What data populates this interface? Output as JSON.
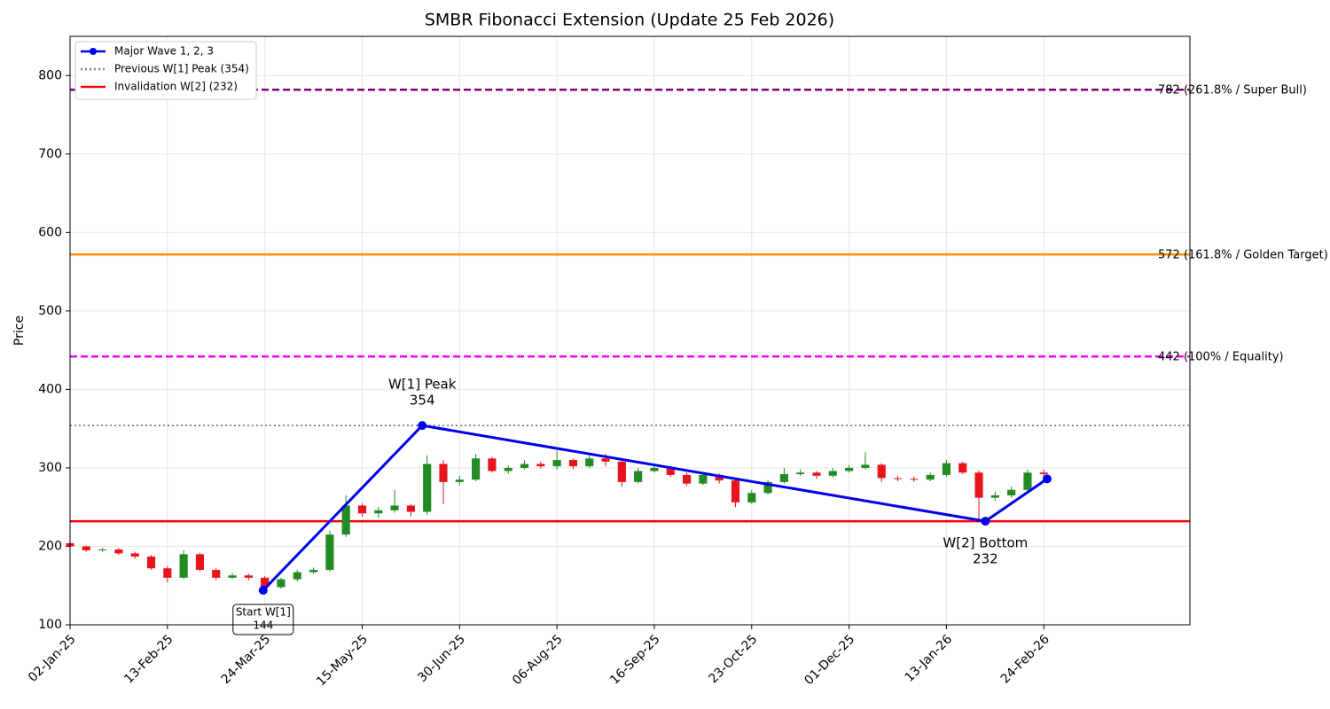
{
  "chart_data": {
    "type": "candlestick",
    "title": "SMBR Fibonacci Extension (Update 25 Feb 2026)",
    "y_label": "Price",
    "categories": [
      "02-Jan-25",
      null,
      null,
      null,
      null,
      null,
      "13-Feb-25",
      null,
      null,
      null,
      null,
      null,
      "24-Mar-25",
      null,
      null,
      null,
      null,
      null,
      "15-May-25",
      null,
      null,
      null,
      null,
      null,
      "30-Jun-25",
      null,
      null,
      null,
      null,
      null,
      "06-Aug-25",
      null,
      null,
      null,
      null,
      null,
      "16-Sep-25",
      null,
      null,
      null,
      null,
      null,
      "23-Oct-25",
      null,
      null,
      null,
      null,
      null,
      "01-Dec-25",
      null,
      null,
      null,
      null,
      null,
      "13-Jan-26",
      null,
      null,
      null,
      null,
      null,
      "24-Feb-26"
    ],
    "open": [
      204,
      200,
      195,
      196,
      191,
      187,
      172,
      160,
      190,
      170,
      160,
      163,
      160,
      148,
      158,
      167,
      170,
      215,
      252,
      242,
      246,
      252,
      244,
      305,
      282,
      285,
      312,
      296,
      300,
      305,
      302,
      310,
      302,
      312,
      308,
      282,
      296,
      300,
      291,
      280,
      291,
      284,
      256,
      268,
      282,
      292,
      294,
      290,
      296,
      300,
      304,
      287,
      286,
      285,
      291,
      306,
      294,
      262,
      265,
      272,
      294
    ],
    "high": [
      205,
      201,
      198,
      198,
      193,
      189,
      175,
      195,
      192,
      172,
      166,
      165,
      162,
      160,
      170,
      173,
      220,
      265,
      255,
      250,
      272,
      254,
      316,
      310,
      290,
      318,
      314,
      303,
      310,
      308,
      322,
      312,
      316,
      318,
      310,
      300,
      304,
      302,
      294,
      294,
      293,
      286,
      272,
      285,
      300,
      298,
      296,
      300,
      304,
      320,
      306,
      290,
      289,
      294,
      310,
      308,
      297,
      270,
      276,
      298,
      298
    ],
    "low": [
      198,
      193,
      193,
      189,
      184,
      170,
      154,
      158,
      168,
      157,
      158,
      157,
      144,
      146,
      155,
      165,
      168,
      212,
      238,
      236,
      243,
      238,
      240,
      254,
      278,
      283,
      294,
      292,
      298,
      299,
      298,
      298,
      300,
      302,
      276,
      280,
      294,
      288,
      277,
      278,
      280,
      250,
      254,
      266,
      280,
      290,
      286,
      288,
      294,
      298,
      282,
      283,
      282,
      283,
      289,
      292,
      232,
      258,
      262,
      270,
      286
    ],
    "close": [
      200,
      195,
      196,
      191,
      187,
      172,
      160,
      190,
      170,
      160,
      163,
      160,
      148,
      158,
      167,
      170,
      215,
      252,
      242,
      246,
      252,
      244,
      305,
      282,
      285,
      312,
      296,
      300,
      305,
      302,
      310,
      302,
      312,
      308,
      282,
      296,
      300,
      291,
      280,
      291,
      284,
      256,
      268,
      282,
      292,
      294,
      290,
      296,
      300,
      304,
      287,
      286,
      285,
      291,
      306,
      294,
      262,
      265,
      272,
      294,
      292
    ],
    "up_color": "#228b22",
    "down_color": "#e8141c",
    "xlim": [
      0,
      69
    ],
    "ylim": [
      100,
      850
    ],
    "yticks": [
      100,
      200,
      300,
      400,
      500,
      600,
      700,
      800
    ],
    "grid": true,
    "legend": "upper left",
    "wave": {
      "name": "Major Wave 1, 2, 3",
      "color": "#0000ee",
      "x": [
        11.9,
        21.7,
        56.4,
        60.2
      ],
      "values": [
        144,
        354,
        232,
        286
      ],
      "point_labels": [
        "Start W[1]",
        "W[1] Peak",
        "W[2] Bottom",
        null
      ],
      "point_label_colors": [
        "#000000",
        "#00008b",
        "#8b0000",
        null
      ]
    },
    "reference_lines": [
      {
        "name": "Previous W[1] Peak (354)",
        "value": 354,
        "color": "#808080",
        "dash": "dotted"
      },
      {
        "name": "Invalidation W[2] (232)",
        "value": 232,
        "color": "#ff0000",
        "dash": "solid"
      }
    ],
    "levels": [
      {
        "label": "782 (261.8% / Super Bull)",
        "value": 782,
        "color": "#800080",
        "dash": "dashed"
      },
      {
        "label": "572 (161.8% / Golden Target)",
        "value": 572,
        "color": "#ff8c00",
        "dash": "solid"
      },
      {
        "label": "442 (100% / Equality)",
        "value": 442,
        "color": "#ff00ff",
        "dash": "dashed"
      }
    ]
  }
}
